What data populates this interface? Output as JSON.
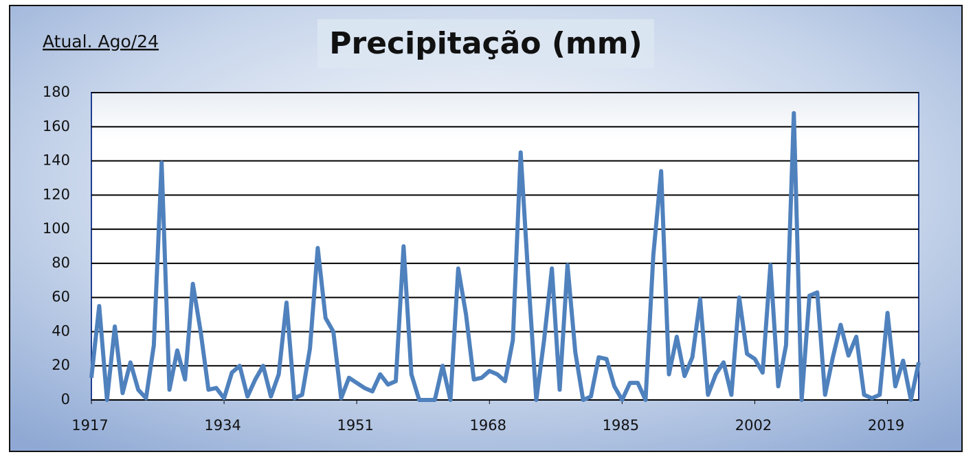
{
  "chart_data": {
    "type": "line",
    "title": "Precipitação (mm)",
    "annotation": "Atual. Ago/24",
    "x": [
      1917,
      1918,
      1919,
      1920,
      1921,
      1922,
      1923,
      1924,
      1925,
      1926,
      1927,
      1928,
      1929,
      1930,
      1931,
      1932,
      1933,
      1934,
      1935,
      1936,
      1937,
      1938,
      1939,
      1940,
      1941,
      1942,
      1943,
      1944,
      1945,
      1946,
      1947,
      1948,
      1949,
      1950,
      1951,
      1952,
      1953,
      1954,
      1955,
      1956,
      1957,
      1958,
      1959,
      1960,
      1961,
      1962,
      1963,
      1964,
      1965,
      1966,
      1967,
      1968,
      1969,
      1970,
      1971,
      1972,
      1973,
      1974,
      1975,
      1976,
      1977,
      1978,
      1979,
      1980,
      1981,
      1982,
      1983,
      1984,
      1985,
      1986,
      1987,
      1988,
      1989,
      1990,
      1991,
      1992,
      1993,
      1994,
      1995,
      1996,
      1997,
      1998,
      1999,
      2000,
      2001,
      2002,
      2003,
      2004,
      2005,
      2006,
      2007,
      2008,
      2009,
      2010,
      2011,
      2012,
      2013,
      2014,
      2015,
      2016,
      2017,
      2018,
      2019,
      2020,
      2021,
      2022,
      2023
    ],
    "series": [
      {
        "name": "Precipitação",
        "color": "#4f81bd",
        "values": [
          13,
          55,
          0,
          43,
          4,
          22,
          6,
          1,
          32,
          139,
          6,
          29,
          12,
          68,
          40,
          6,
          7,
          1,
          16,
          20,
          2,
          12,
          20,
          2,
          15,
          57,
          1,
          3,
          30,
          89,
          48,
          40,
          1,
          13,
          10,
          7,
          5,
          15,
          9,
          11,
          90,
          15,
          0,
          0,
          0,
          20,
          0,
          77,
          50,
          12,
          13,
          17,
          15,
          11,
          35,
          145,
          70,
          0,
          35,
          77,
          6,
          79,
          28,
          0,
          2,
          25,
          24,
          8,
          0,
          10,
          10,
          0,
          85,
          134,
          15,
          37,
          14,
          25,
          59,
          3,
          15,
          22,
          3,
          60,
          27,
          24,
          16,
          79,
          8,
          32,
          168,
          0,
          61,
          63,
          3,
          25,
          44,
          26,
          37,
          3,
          1,
          3,
          51,
          8,
          23,
          0,
          22
        ]
      }
    ],
    "xlim": [
      1917,
      2023
    ],
    "xticks": [
      1917,
      1934,
      1951,
      1968,
      1985,
      2002,
      2019
    ],
    "ylim": [
      0,
      180
    ],
    "yticks": [
      0,
      20,
      40,
      60,
      80,
      100,
      120,
      140,
      160,
      180
    ],
    "grid": true
  }
}
